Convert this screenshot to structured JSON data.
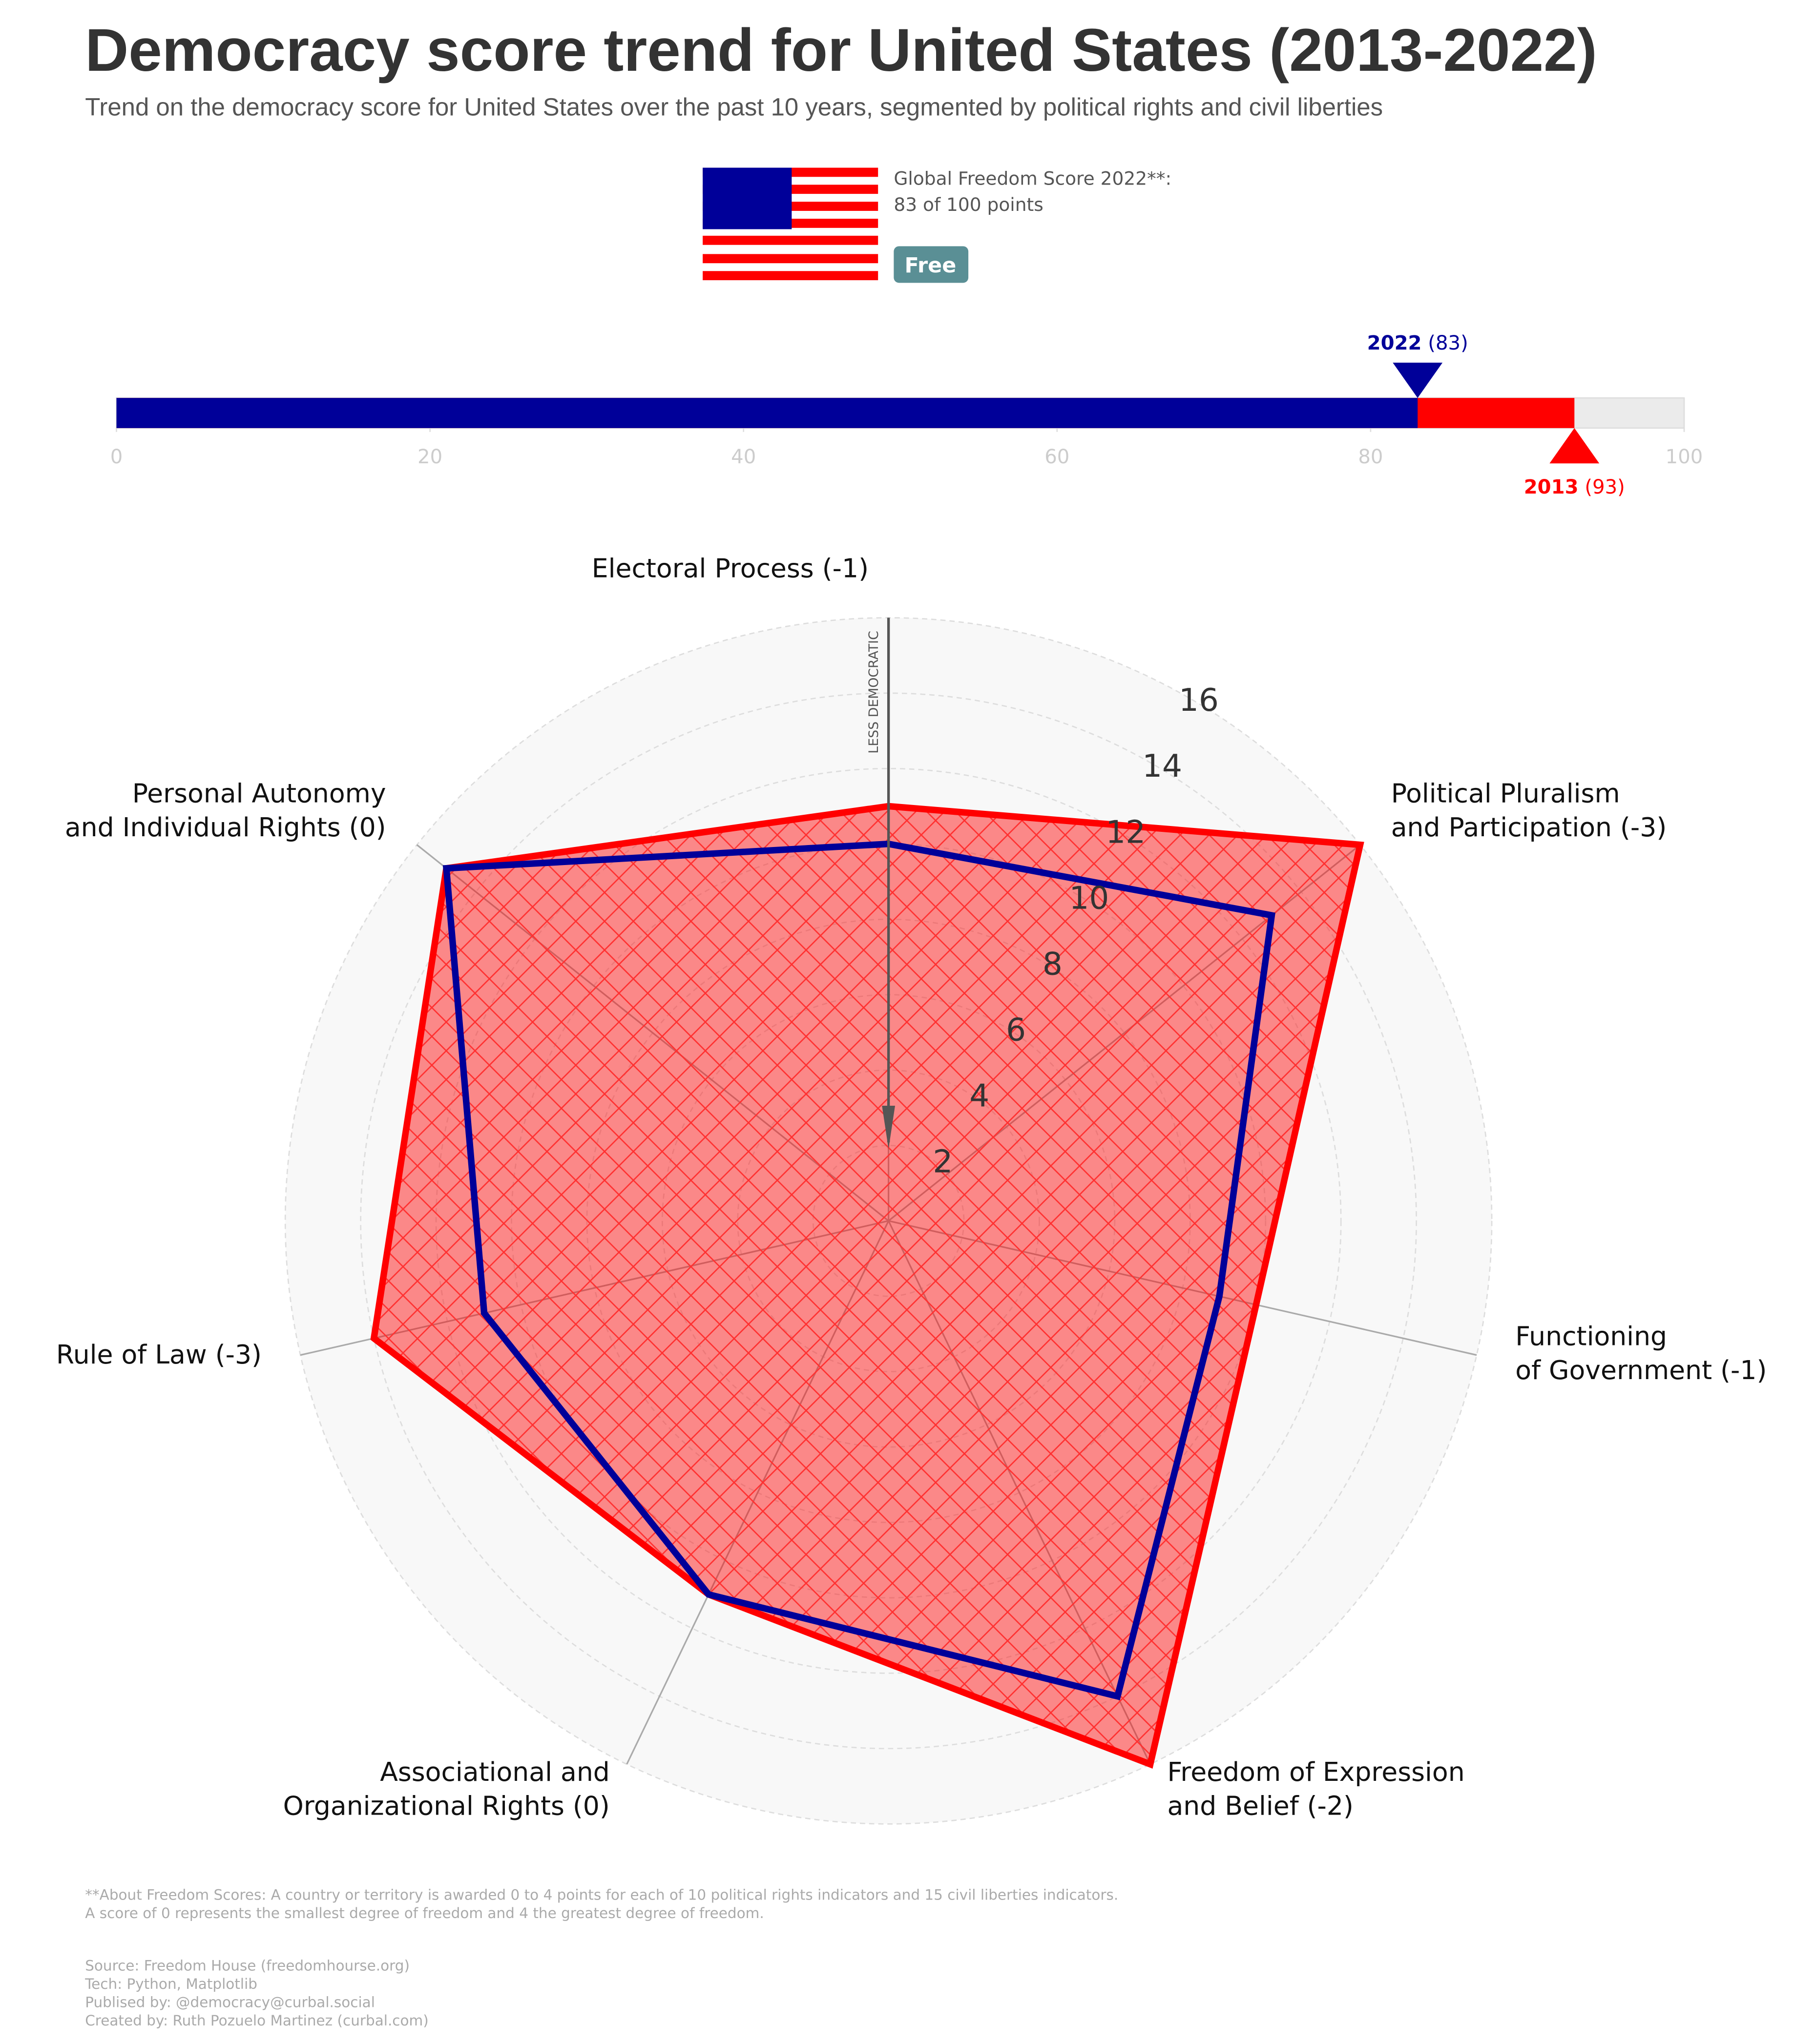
{
  "header": {
    "title": "Democracy score trend for United States (2013-2022)",
    "subtitle": "Trend on the democracy score for United States over the past 10 years, segmented by political rights and civil liberties"
  },
  "score": {
    "label": "Global Freedom Score 2022**:",
    "text": "83 of 100 points",
    "status": "Free"
  },
  "chart_data": [
    {
      "type": "bar",
      "xlim": [
        0,
        100
      ],
      "xticks": [
        0,
        20,
        40,
        60,
        80,
        100
      ],
      "series": [
        {
          "name": "2022",
          "color": "#000099",
          "values": [
            83
          ],
          "value_labels": [
            "(83)"
          ]
        },
        {
          "name": "2013",
          "color": "#ff0000",
          "values": [
            93
          ],
          "value_labels": [
            "(93)"
          ]
        }
      ]
    },
    {
      "type": "radar",
      "categories": [
        [
          "Electoral Process (-1)"
        ],
        [
          "Political Pluralism",
          "and Participation (-3)"
        ],
        [
          "Functioning",
          "of Government (-1)"
        ],
        [
          "Freedom of Expression",
          "and Belief (-2)"
        ],
        [
          "Associational and",
          "Organizational Rights (0)"
        ],
        [
          "Rule of Law (-3)"
        ],
        [
          "Personal Autonomy",
          "and Individual Rights (0)"
        ]
      ],
      "rlim": [
        0,
        16
      ],
      "rticks": [
        2,
        4,
        6,
        8,
        10,
        12,
        14,
        16
      ],
      "annotation": "LESS DEMOCRATIC",
      "series": [
        {
          "color": "#ff0000",
          "values": [
            11,
            16,
            10,
            16,
            11,
            14,
            15
          ]
        },
        {
          "color": "#000099",
          "values": [
            10,
            13,
            9,
            14,
            11,
            11,
            15
          ]
        }
      ]
    }
  ],
  "notes": [
    "**About Freedom Scores: A country or territory is awarded 0 to 4 points for each of 10 political rights indicators and 15 civil liberties indicators.",
    "A score of 0 represents the smallest degree of freedom and 4 the greatest degree of freedom."
  ],
  "credits": [
    "Source: Freedom House (freedomhourse.org)",
    "Tech: Python, Matplotlib",
    "Publised by: @democracy@curbal.social",
    "Created by: Ruth Pozuelo Martinez (curbal.com)"
  ]
}
